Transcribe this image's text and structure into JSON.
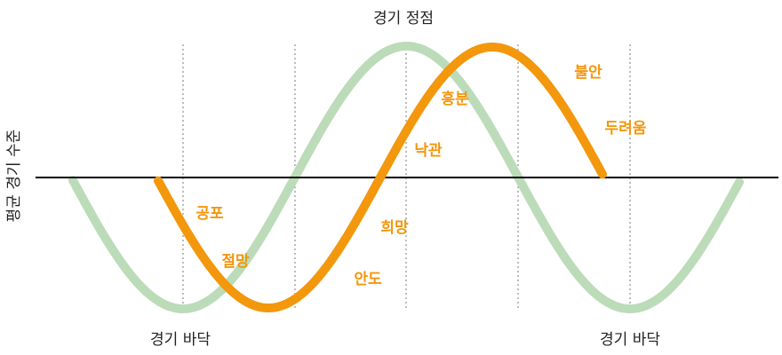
{
  "labels": {
    "peak": "경기 정점",
    "trough_left": "경기 바닥",
    "trough_right": "경기 바닥",
    "y_axis": "평균 경기 수준"
  },
  "emotions": {
    "fear": "공포",
    "despair": "절망",
    "relief": "안도",
    "hope": "희망",
    "optimism": "낙관",
    "excitement": "흥분",
    "anxiety": "불안",
    "dread": "두려움"
  },
  "colors": {
    "economy_curve": "#bcdcb9",
    "sentiment_curve": "#f3970c",
    "emotion_text": "#f3970c",
    "baseline": "#000000",
    "gridline": "#999999"
  }
}
